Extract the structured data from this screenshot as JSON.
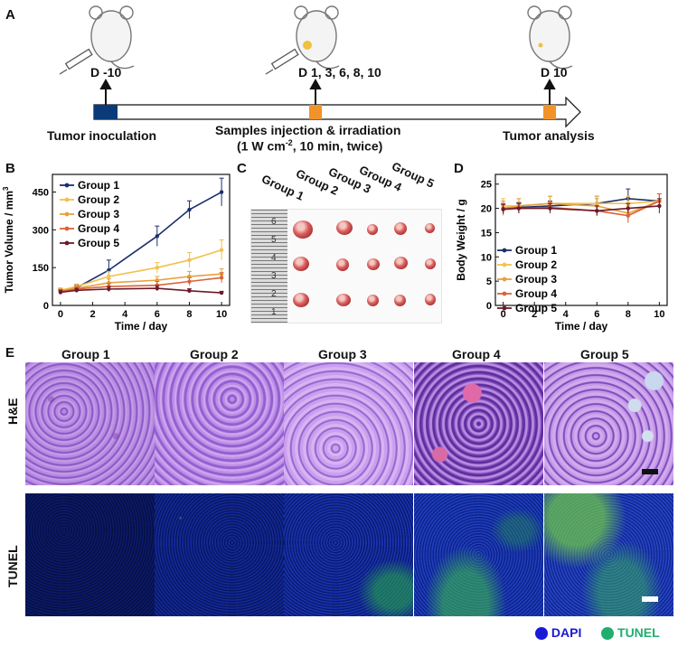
{
  "panels": {
    "a": "A",
    "b": "B",
    "c": "C",
    "d": "D",
    "e": "E"
  },
  "timeline": {
    "markers": [
      "D -10",
      "D 1, 3, 6, 8, 10",
      "D 10"
    ],
    "left_label": "Tumor inoculation",
    "center_label": "Samples injection & irradiation",
    "center_sub_prefix": "(1 W cm",
    "center_sub_sup": "-2",
    "center_sub_suffix": ", 10 min, twice)",
    "right_label": "Tumor analysis",
    "colors": {
      "start": "#0b3a78",
      "event": "#f0932b",
      "arrow": "#111111"
    }
  },
  "chart_b": {
    "type": "line",
    "ylabel_main": "Tumor Volume / mm",
    "ylabel_sup": "3",
    "xlabel": "Time / day",
    "x": [
      0,
      1,
      3,
      6,
      8,
      10
    ],
    "xticks": [
      "0",
      "2",
      "4",
      "6",
      "8",
      "10"
    ],
    "yticks": [
      "0",
      "150",
      "300",
      "450"
    ],
    "ylim": [
      0,
      520
    ],
    "xlim": [
      -0.5,
      10.5
    ],
    "series": [
      {
        "name": "Group 1",
        "color": "#1b2f6e",
        "values": [
          55,
          70,
          140,
          275,
          380,
          450
        ],
        "err": [
          10,
          12,
          40,
          40,
          35,
          55
        ]
      },
      {
        "name": "Group 2",
        "color": "#f2c14e",
        "values": [
          60,
          75,
          115,
          150,
          180,
          220
        ],
        "err": [
          10,
          10,
          20,
          20,
          30,
          40
        ]
      },
      {
        "name": "Group 3",
        "color": "#e8a03a",
        "values": [
          58,
          68,
          90,
          100,
          115,
          125
        ],
        "err": [
          8,
          10,
          15,
          15,
          20,
          20
        ]
      },
      {
        "name": "Group 4",
        "color": "#d9623b",
        "values": [
          55,
          65,
          75,
          80,
          95,
          110
        ],
        "err": [
          8,
          10,
          12,
          15,
          15,
          20
        ]
      },
      {
        "name": "Group 5",
        "color": "#6b1a2a",
        "values": [
          52,
          60,
          65,
          68,
          58,
          50
        ],
        "err": [
          8,
          8,
          10,
          10,
          8,
          6
        ]
      }
    ]
  },
  "chart_d": {
    "type": "line",
    "ylabel": "Body Weight / g",
    "xlabel": "Time / day",
    "x": [
      0,
      1,
      3,
      6,
      8,
      10
    ],
    "xticks": [
      "0",
      "2",
      "4",
      "6",
      "8",
      "10"
    ],
    "yticks": [
      "0",
      "5",
      "10",
      "15",
      "20",
      "25"
    ],
    "ylim": [
      0,
      27
    ],
    "xlim": [
      -0.5,
      10.5
    ],
    "series": [
      {
        "name": "Group 1",
        "color": "#1b2f6e",
        "values": [
          20.0,
          20.2,
          20.5,
          21.0,
          22.0,
          21.5
        ],
        "err": [
          1,
          1,
          1,
          1.5,
          2,
          1.5
        ]
      },
      {
        "name": "Group 2",
        "color": "#f2c14e",
        "values": [
          20.5,
          20.5,
          21.0,
          21.0,
          21.0,
          21.5
        ],
        "err": [
          1.5,
          1.5,
          1.5,
          1.5,
          1.5,
          1.5
        ]
      },
      {
        "name": "Group 3",
        "color": "#e8a03a",
        "values": [
          20.0,
          20.5,
          21.0,
          20.5,
          19.0,
          21.5
        ],
        "err": [
          1.5,
          1.5,
          1.5,
          1.5,
          1.5,
          1.5
        ]
      },
      {
        "name": "Group 4",
        "color": "#d9623b",
        "values": [
          20.0,
          20.0,
          20.2,
          19.5,
          18.5,
          21.5
        ],
        "err": [
          1,
          1,
          1,
          1,
          1.5,
          1.5
        ]
      },
      {
        "name": "Group 5",
        "color": "#6b1a2a",
        "values": [
          19.8,
          20.0,
          20.0,
          19.5,
          20.0,
          20.5
        ],
        "err": [
          1,
          1,
          1,
          1,
          1,
          1.5
        ]
      }
    ]
  },
  "photo_c": {
    "groups": [
      "Group 1",
      "Group 2",
      "Group 3",
      "Group 4",
      "Group 5"
    ],
    "ruler_marks": [
      "6",
      "5",
      "4",
      "3",
      "2",
      "1"
    ]
  },
  "panel_e": {
    "groups": [
      "Group 1",
      "Group 2",
      "Group 3",
      "Group 4",
      "Group 5"
    ],
    "rows": [
      "H&E",
      "TUNEL"
    ],
    "legend": [
      {
        "label": "DAPI",
        "color": "#1a1ad6"
      },
      {
        "label": "TUNEL",
        "color": "#1fae6e"
      }
    ]
  }
}
